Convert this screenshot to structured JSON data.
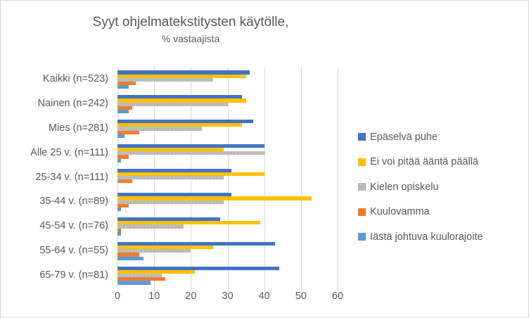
{
  "title": "Syyt ohjelmatekstitysten käytölle,",
  "subtitle": "% vastaajista",
  "chart_data": {
    "type": "bar",
    "orientation": "horizontal",
    "title": "Syyt ohjelmatekstitysten käytölle,",
    "subtitle": "% vastaajista",
    "xlabel": "",
    "ylabel": "",
    "xlim": [
      0,
      60
    ],
    "xticks": [
      0,
      10,
      20,
      30,
      40,
      50,
      60
    ],
    "grid": true,
    "legend_position": "right",
    "categories": [
      "Kaikki (n=523)",
      "Nainen (n=242)",
      "Mies (n=281)",
      "Alle 25 v. (n=111)",
      "25-34 v. (n=111)",
      "35-44 v. (n=89)",
      "45-54 v. (n=76)",
      "55-64 v. (n=55)",
      "65-79 v. (n=81)"
    ],
    "series": [
      {
        "name": "Epäselvä puhe",
        "color": "#4472C4",
        "pattern": false,
        "values": [
          36,
          34,
          37,
          40,
          31,
          31,
          28,
          43,
          44
        ]
      },
      {
        "name": "Ei voi pitää ääntä päällä",
        "color": "#FFC000",
        "pattern": false,
        "values": [
          35,
          35,
          34,
          29,
          40,
          53,
          39,
          26,
          21
        ]
      },
      {
        "name": "Kielen opiskelu",
        "color": "#A6A6A6",
        "pattern": true,
        "values": [
          26,
          30,
          23,
          40,
          29,
          29,
          18,
          20,
          12
        ]
      },
      {
        "name": "Kuulovamma",
        "color": "#ED7D31",
        "pattern": false,
        "values": [
          5,
          4,
          6,
          3,
          4,
          3,
          1,
          6,
          13
        ]
      },
      {
        "name": "Iästä johtuva kuulorajoite",
        "color": "#5B9BD5",
        "pattern": false,
        "values": [
          3,
          3,
          2,
          1,
          0,
          1,
          1,
          7,
          9
        ]
      }
    ]
  },
  "colors": {
    "text": "#595959",
    "gridline": "#D9D9D9",
    "frame_border": "#D7D7D7",
    "background": "#FFFFFF"
  }
}
